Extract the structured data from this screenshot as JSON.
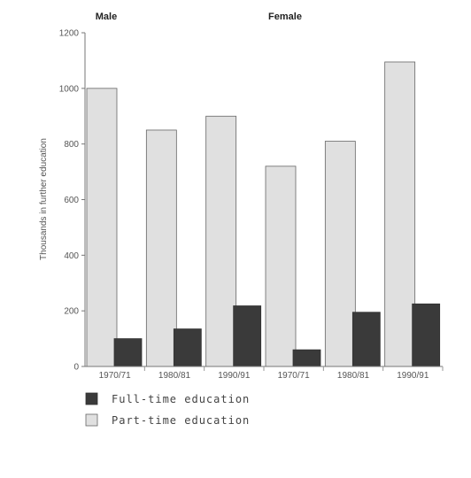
{
  "chart_data": {
    "type": "bar",
    "groups": [
      {
        "label": "Male",
        "categories": [
          "1970/71",
          "1980/81",
          "1990/91"
        ]
      },
      {
        "label": "Female",
        "categories": [
          "1970/71",
          "1980/81",
          "1990/91"
        ]
      }
    ],
    "categories": [
      "1970/71",
      "1980/81",
      "1990/91",
      "1970/71",
      "1980/81",
      "1990/91"
    ],
    "series": [
      {
        "name": "Full-time education",
        "color": "#3a3a3a",
        "values": [
          100,
          135,
          218,
          60,
          195,
          225
        ]
      },
      {
        "name": "Part-time education",
        "color": "#e0e0e0",
        "values": [
          1000,
          850,
          900,
          720,
          810,
          1095
        ]
      }
    ],
    "ylabel": "Thousands in further education",
    "ylim": [
      0,
      1200
    ],
    "yticks": [
      0,
      200,
      400,
      600,
      800,
      1000,
      1200
    ],
    "grid": false,
    "legend": "bottom-left"
  }
}
